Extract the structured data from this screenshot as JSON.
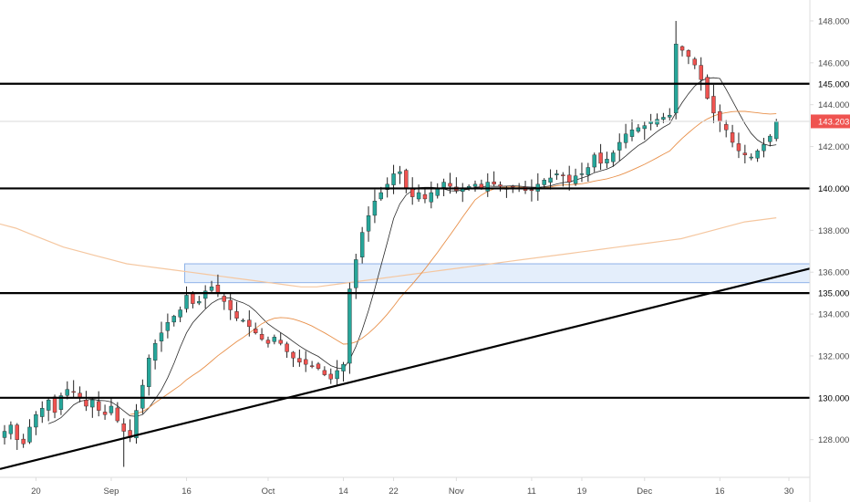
{
  "chart_data": {
    "type": "candlestick",
    "y_axis": {
      "range": [
        126.2,
        149.0
      ],
      "tick_labels": [
        "128.000",
        "130.000",
        "132.000",
        "134.000",
        "136.000",
        "138.000",
        "140.000",
        "142.000",
        "144.000",
        "146.000",
        "148.000"
      ],
      "tick_values": [
        128,
        130,
        132,
        134,
        136,
        138,
        140,
        142,
        144,
        146,
        148
      ],
      "position": "right"
    },
    "x_axis": {
      "tick_labels": [
        "20",
        "Sep",
        "16",
        "Oct",
        "14",
        "22",
        "Nov",
        "11",
        "19",
        "Dec",
        "16",
        "30"
      ],
      "tick_bar_index": [
        5,
        17,
        29,
        42,
        54,
        62,
        72,
        84,
        92,
        102,
        114,
        125
      ]
    },
    "series_close": [
      128.4,
      128.7,
      128.0,
      127.8,
      128.6,
      129.2,
      129.5,
      129.9,
      129.3,
      130.1,
      130.4,
      130.3,
      130.0,
      129.6,
      129.9,
      129.4,
      129.2,
      129.6,
      128.9,
      128.4,
      128.1,
      129.4,
      130.6,
      131.9,
      132.6,
      133.1,
      133.6,
      133.9,
      134.2,
      134.9,
      134.5,
      134.6,
      135.1,
      135.3,
      135.0,
      134.6,
      134.2,
      133.8,
      133.7,
      133.4,
      133.1,
      132.8,
      132.6,
      132.9,
      132.6,
      132.2,
      131.9,
      131.7,
      131.6,
      131.5,
      131.4,
      131.1,
      130.9,
      131.3,
      131.6,
      135.2,
      136.6,
      137.9,
      138.7,
      139.4,
      139.8,
      140.2,
      140.7,
      140.8,
      140.0,
      139.6,
      139.8,
      139.5,
      139.8,
      140.0,
      140.3,
      140.1,
      139.9,
      140.0,
      140.1,
      140.2,
      140.0,
      140.3,
      140.2,
      140.1,
      140.0,
      140.1,
      140.0,
      139.9,
      139.9,
      140.2,
      140.4,
      140.5,
      140.7,
      140.6,
      140.3,
      140.6,
      140.7,
      141.0,
      141.6,
      141.2,
      141.4,
      141.7,
      142.2,
      142.6,
      142.8,
      142.9,
      143.0,
      143.2,
      143.3,
      143.4,
      143.5,
      146.9,
      146.6,
      146.3,
      145.9,
      145.2,
      144.3,
      143.6,
      143.2,
      142.8,
      142.2,
      141.8,
      141.6,
      141.5,
      141.8,
      142.1,
      142.5,
      143.2
    ],
    "candles_ohlc": [],
    "moving_averages": [
      {
        "period": 8,
        "color": "#2a2a2a"
      },
      {
        "period": 21,
        "color": "#e8904a"
      },
      {
        "period": 200,
        "color": "#f5c7a0"
      }
    ],
    "long_ma_y": [
      138.3,
      138.1,
      137.8,
      137.5,
      137.2,
      137.0,
      136.8,
      136.6,
      136.4,
      136.3,
      136.2,
      136.1,
      136.0,
      135.9,
      135.8,
      135.7,
      135.6,
      135.5,
      135.4,
      135.3,
      135.3,
      135.4,
      135.5,
      135.6,
      135.7,
      135.8,
      135.9,
      136.0,
      136.1,
      136.2,
      136.3,
      136.4,
      136.5,
      136.6,
      136.7,
      136.8,
      136.9,
      137.0,
      137.1,
      137.2,
      137.3,
      137.4,
      137.5,
      137.6,
      137.8,
      138.0,
      138.2,
      138.4,
      138.5,
      138.6
    ],
    "horizontal_levels": [
      130,
      135,
      140,
      145
    ],
    "current_price": 143.203,
    "current_price_label": "143.203",
    "level_labels": [
      "130.000",
      "135.000",
      "140.000",
      "145.000"
    ],
    "zone": {
      "y_low": 135.5,
      "y_high": 136.4,
      "start_bar": 29
    },
    "trendline": {
      "start": {
        "bar": 0,
        "price": 126.6
      },
      "end": {
        "bar": 128,
        "price": 136.2
      }
    },
    "colors": {
      "up": "#26a69a",
      "down": "#ef5350",
      "wick": "#222222",
      "level_line": "#000000",
      "price_label": "#ef5350",
      "zone_fill": "#e4eefb",
      "zone_stroke": "#8fb3e8",
      "axis_text": "#4a4a4a",
      "axis_line": "#dddddd"
    }
  }
}
